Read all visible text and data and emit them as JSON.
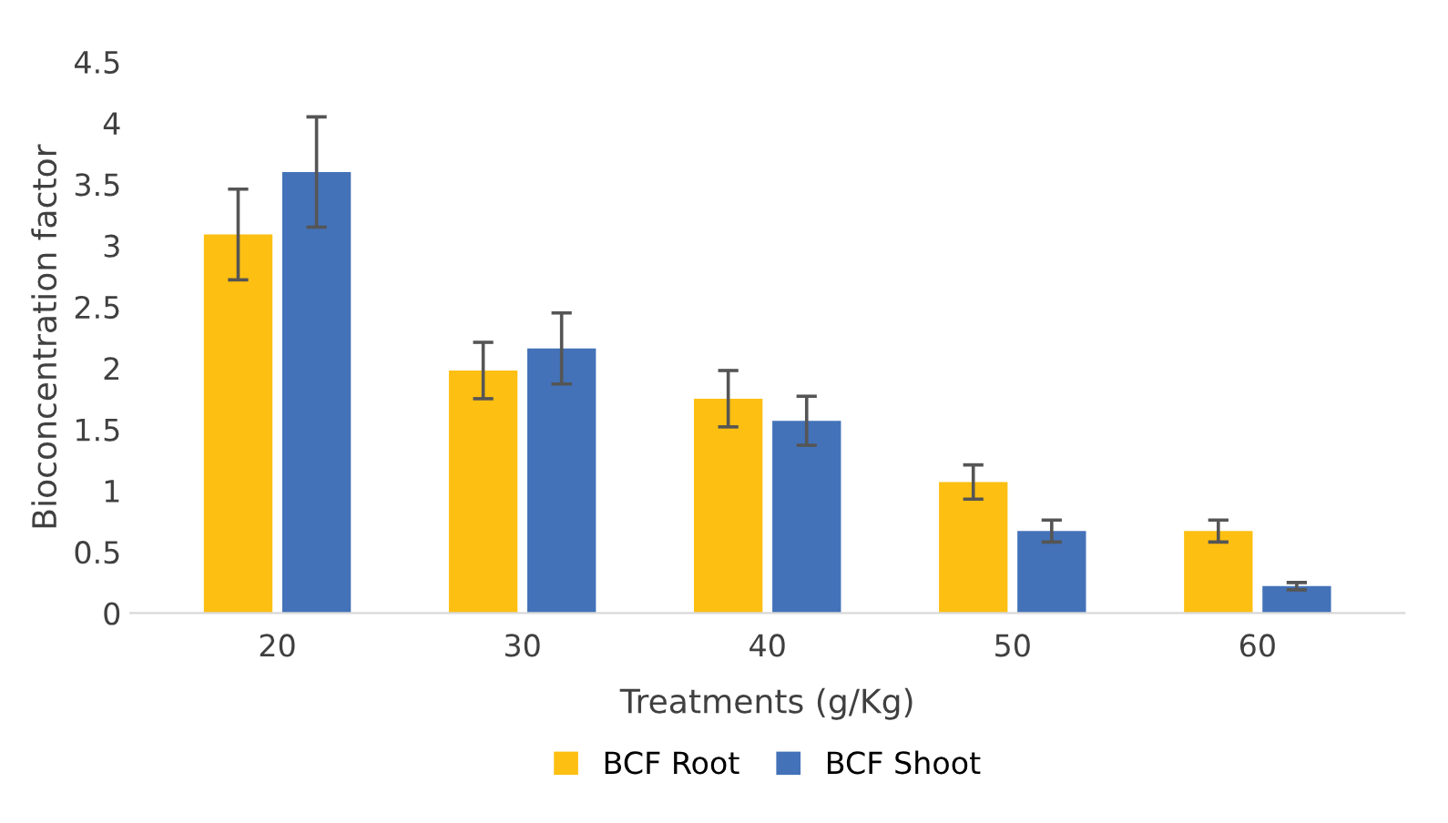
{
  "chart_data": {
    "type": "bar",
    "xlabel": "Treatments (g/Kg)",
    "ylabel": "Bioconcentration factor",
    "categories": [
      "20",
      "30",
      "40",
      "50",
      "60"
    ],
    "series": [
      {
        "name": "BCF Root",
        "color": "#fdbf12",
        "values": [
          3.09,
          1.98,
          1.75,
          1.07,
          0.67
        ],
        "errors": [
          0.37,
          0.23,
          0.23,
          0.14,
          0.09
        ]
      },
      {
        "name": "BCF Shoot",
        "color": "#4372b8",
        "values": [
          3.6,
          2.16,
          1.57,
          0.67,
          0.22
        ],
        "errors": [
          0.45,
          0.29,
          0.2,
          0.09,
          0.03
        ]
      }
    ],
    "ylim": [
      0,
      4.5
    ],
    "yticks": [
      0,
      0.5,
      1,
      1.5,
      2,
      2.5,
      3,
      3.5,
      4,
      4.5
    ],
    "grid": false,
    "legend": "bottom"
  }
}
